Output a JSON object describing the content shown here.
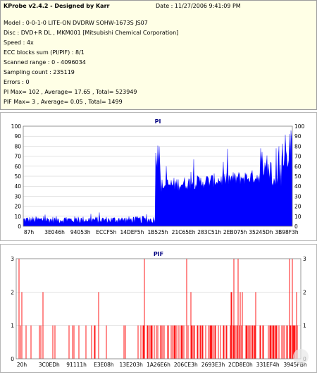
{
  "header": {
    "title": "KProbe v2.4.2 - Designed by Karr",
    "date": "Date : 11/27/2006 9:41:09 PM",
    "lines": [
      "Model : 0-0-1-0 LITE-ON DVDRW SOHW-1673S JS07",
      "Disc : DVD+R DL , MKM001 [Mitsubishi Chemical Corporation]",
      "Speed : 4x",
      "ECC blocks sum (PI/PIF) : 8/1",
      "Scanned range : 0 - 4096034",
      "Sampling count : 235119",
      "Errors : 0",
      "PI Max= 102 , Average= 17.65 , Total= 523949",
      "PIF Max= 3 , Average= 0.05 , Total= 1499"
    ]
  },
  "colors": {
    "pi": "#0000ff",
    "pif": "#ff0000",
    "grid": "#c8c8c8",
    "title": "#000080"
  },
  "chart_data": [
    {
      "type": "area",
      "title": "PI",
      "ylim": [
        0,
        100
      ],
      "yticks": [
        0,
        10,
        20,
        30,
        40,
        50,
        60,
        70,
        80,
        90,
        100
      ],
      "xtick_labels": [
        "87h",
        "3E046h",
        "94053h",
        "ECCF5h",
        "14DEF5h",
        "1B525h",
        "21C65Eh",
        "283C51h",
        "2EB075h",
        "35245Dh",
        "3B98F3h"
      ],
      "series": [
        {
          "segment": "0%-49%",
          "baseline_range": [
            3,
            10
          ],
          "description_values": [
            6,
            7,
            5,
            8,
            6,
            9,
            4,
            7,
            5,
            6
          ]
        },
        {
          "segment": "49%-100%",
          "baseline_range": [
            30,
            55
          ],
          "peaks": [
            68,
            65,
            72,
            80,
            90,
            102
          ]
        }
      ]
    },
    {
      "type": "bar",
      "title": "PIF",
      "ylim": [
        0,
        3
      ],
      "yticks": [
        0,
        1,
        2,
        3
      ],
      "xtick_labels": [
        "20h",
        "3C0EDh",
        "91111h",
        "E3E08h",
        "13E203h",
        "1A26E6h",
        "206CE3h",
        "2693E3h",
        "2CD8E0h",
        "331EF4h",
        "3945FBh"
      ],
      "max": 3
    }
  ]
}
